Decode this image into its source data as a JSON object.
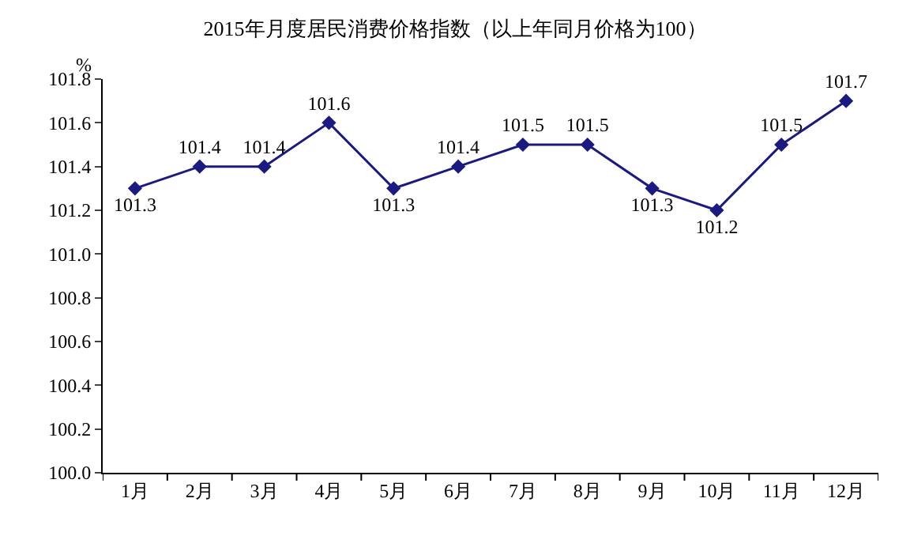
{
  "chart_data": {
    "type": "line",
    "title": "2015年月度居民消费价格指数（以上年同月价格为100）",
    "ylabel": "%",
    "categories": [
      "1月",
      "2月",
      "3月",
      "4月",
      "5月",
      "6月",
      "7月",
      "8月",
      "9月",
      "10月",
      "11月",
      "12月"
    ],
    "series": [
      {
        "color": "#1a1a80",
        "values": [
          101.3,
          101.4,
          101.4,
          101.6,
          101.3,
          101.4,
          101.5,
          101.5,
          101.3,
          101.2,
          101.5,
          101.7
        ]
      }
    ],
    "ylim": [
      100.0,
      101.8
    ],
    "yticks": [
      {
        "value": 100.0,
        "label": "100.0"
      },
      100.2,
      100.4,
      100.6,
      100.8,
      {
        "value": 101.0,
        "label": "101.0"
      },
      101.2,
      101.4,
      101.6,
      101.8
    ],
    "data_labels": true,
    "marker": "diamond",
    "line_style": "solid",
    "legend": false
  }
}
